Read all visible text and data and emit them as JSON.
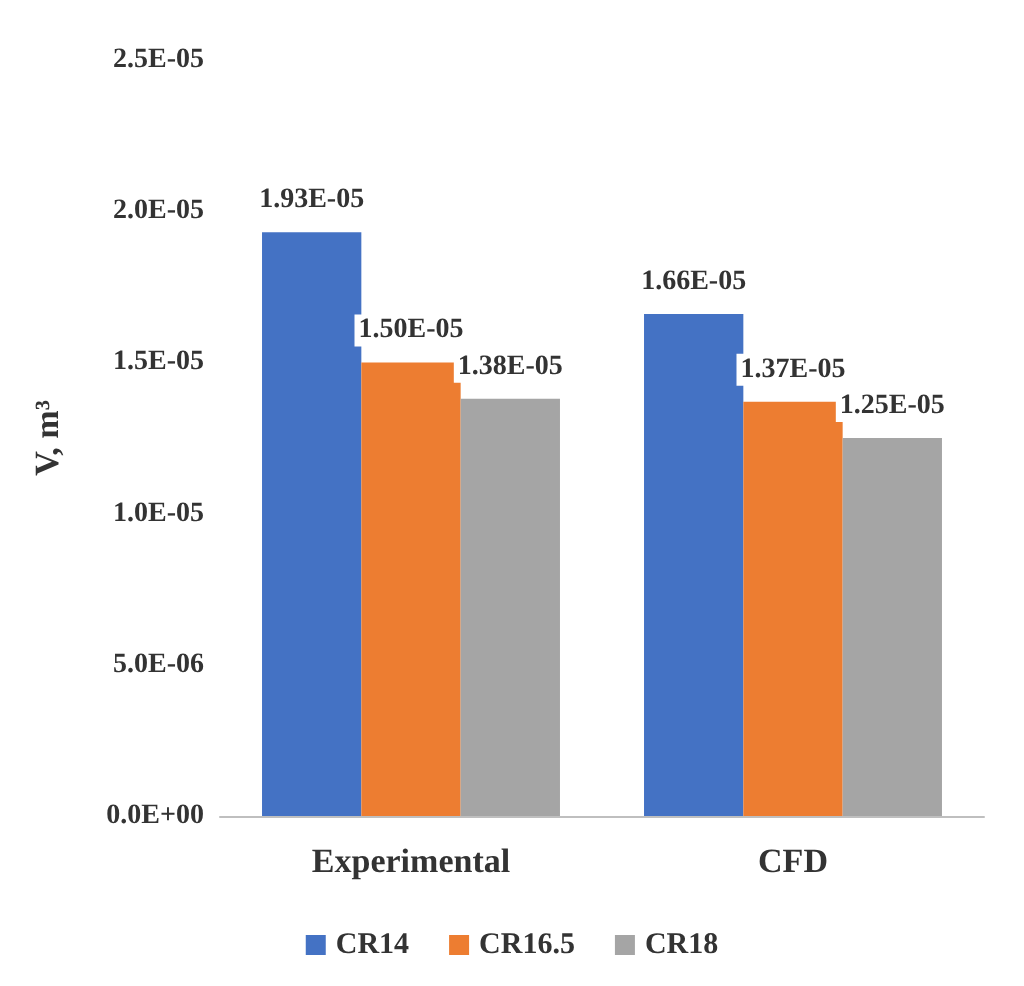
{
  "chart_data": {
    "type": "bar",
    "ylabel": "V, m³",
    "categories": [
      "Experimental",
      "CFD"
    ],
    "series": [
      {
        "name": "CR14",
        "color": "#4472c4",
        "values": [
          1.93e-05,
          1.66e-05
        ],
        "value_labels": [
          "1.93E-05",
          "1.66E-05"
        ]
      },
      {
        "name": "CR16.5",
        "color": "#ed7d31",
        "values": [
          1.5e-05,
          1.37e-05
        ],
        "value_labels": [
          "1.50E-05",
          "1.37E-05"
        ]
      },
      {
        "name": "CR18",
        "color": "#a5a5a5",
        "values": [
          1.38e-05,
          1.25e-05
        ],
        "value_labels": [
          "1.38E-05",
          "1.25E-05"
        ]
      }
    ],
    "ylim": [
      0,
      2.5e-05
    ],
    "yticks": [
      {
        "value": 0,
        "label": "0.0E+00"
      },
      {
        "value": 5e-06,
        "label": "5.0E-06"
      },
      {
        "value": 1e-05,
        "label": "1.0E-05"
      },
      {
        "value": 1.5e-05,
        "label": "1.5E-05"
      },
      {
        "value": 2e-05,
        "label": "2.0E-05"
      },
      {
        "value": 2.5e-05,
        "label": "2.5E-05"
      }
    ],
    "grid": false,
    "legend": "bottom"
  }
}
